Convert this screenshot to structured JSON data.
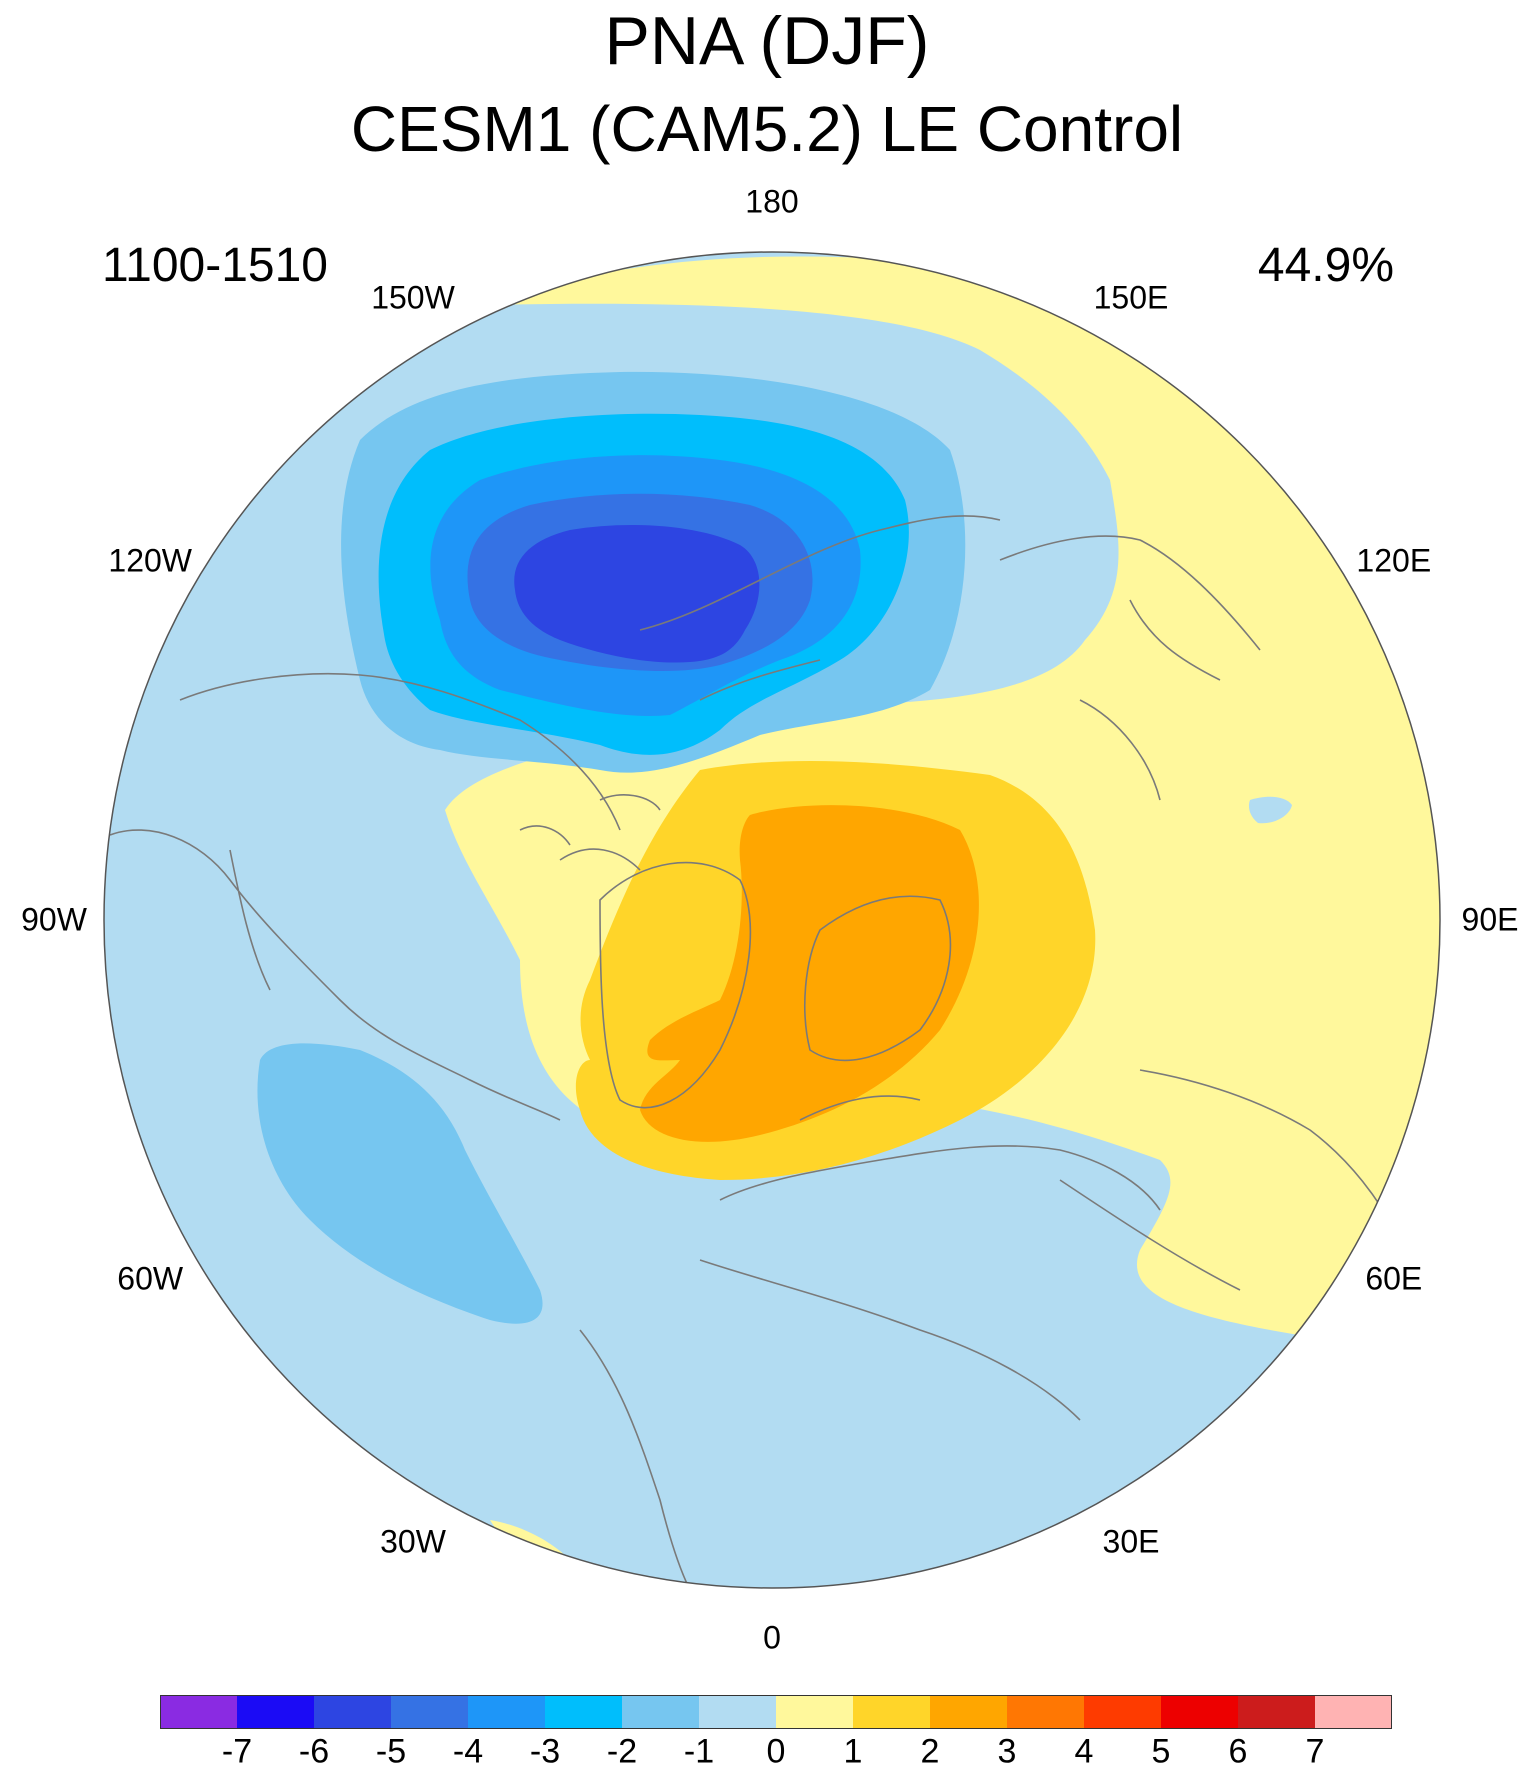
{
  "title": "PNA (DJF)",
  "subtitle": "CESM1 (CAM5.2) LE Control",
  "period": "1100-1510",
  "variance": "44.9%",
  "lon_labels": [
    {
      "key": "180",
      "text": "180",
      "lon": 180
    },
    {
      "key": "150e",
      "text": "150E",
      "lon": 150
    },
    {
      "key": "120e",
      "text": "120E",
      "lon": 120
    },
    {
      "key": "90e",
      "text": "90E",
      "lon": 90
    },
    {
      "key": "60e",
      "text": "60E",
      "lon": 60
    },
    {
      "key": "30e",
      "text": "30E",
      "lon": 30
    },
    {
      "key": "0",
      "text": "0",
      "lon": 0
    },
    {
      "key": "30w",
      "text": "30W",
      "lon": -30
    },
    {
      "key": "60w",
      "text": "60W",
      "lon": -60
    },
    {
      "key": "90w",
      "text": "90W",
      "lon": -90
    },
    {
      "key": "120w",
      "text": "120W",
      "lon": -120
    },
    {
      "key": "150w",
      "text": "150W",
      "lon": -150
    }
  ],
  "colorbar": {
    "colors": [
      "#8a2be2",
      "#1b0bf5",
      "#2d45e2",
      "#3572e4",
      "#1e96f8",
      "#00befc",
      "#76c6f0",
      "#b2dcf2",
      "#fff89c",
      "#ffd529",
      "#ffa600",
      "#ff7703",
      "#fe3b00",
      "#ed0000",
      "#cc1c1c",
      "#ffb3b3"
    ],
    "labels": [
      "-7",
      "-6",
      "-5",
      "-4",
      "-3",
      "-2",
      "-1",
      "0",
      "1",
      "2",
      "3",
      "4",
      "5",
      "6",
      "7"
    ]
  },
  "chart_data": {
    "type": "heatmap",
    "projection": "north-polar-stereographic",
    "field": "PNA regression pattern",
    "contour_levels": [
      -7,
      -6,
      -5,
      -4,
      -3,
      -2,
      -1,
      0,
      1,
      2,
      3,
      4,
      5,
      6,
      7
    ],
    "background_level_range": [
      -1,
      0
    ],
    "features": [
      {
        "name": "north-pacific-low",
        "sign": "negative",
        "min_level": -5
      },
      {
        "name": "western-canada-high",
        "sign": "positive",
        "max_level": 3
      },
      {
        "name": "southeast-us-low",
        "sign": "negative",
        "min_level": -2
      },
      {
        "name": "eurasia-positive",
        "sign": "positive",
        "max_level": 1
      }
    ]
  }
}
